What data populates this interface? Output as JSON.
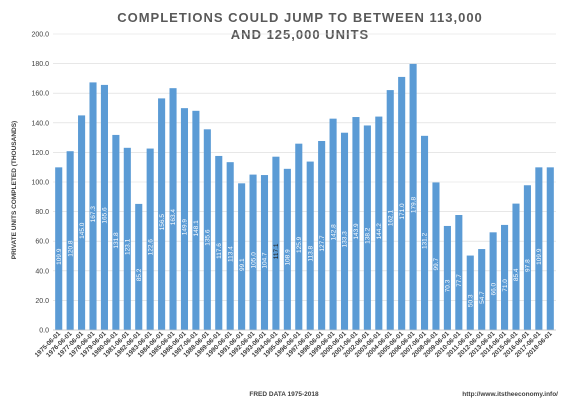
{
  "chart_data": {
    "type": "bar",
    "title_lines": [
      "COMPLETIONS COULD JUMP TO BETWEEN  113,000",
      "AND 125,000 UNITS"
    ],
    "ylabel": "PRIVATE UNITS COMPLETED (THOUSANDS)",
    "xlabel": "",
    "ylim": [
      0,
      200
    ],
    "yticks": [
      "0.0",
      "20.0",
      "40.0",
      "60.0",
      "80.0",
      "100.0",
      "120.0",
      "140.0",
      "160.0",
      "180.0",
      "200.0"
    ],
    "grid": true,
    "categories": [
      "1975-06-01",
      "1976-06-01",
      "1977-06-01",
      "1978-06-01",
      "1979-06-01",
      "1980-06-01",
      "1981-06-01",
      "1982-06-01",
      "1983-06-01",
      "1984-06-01",
      "1985-06-01",
      "1986-06-01",
      "1987-06-01",
      "1988-06-01",
      "1989-06-01",
      "1990-06-01",
      "1991-06-01",
      "1992-06-01",
      "1993-06-01",
      "1994-06-01",
      "1995-06-01",
      "1996-06-01",
      "1997-06-01",
      "1998-06-01",
      "1999-06-01",
      "2000-06-01",
      "2001-06-01",
      "2002-06-01",
      "2003-06-01",
      "2004-06-01",
      "2005-06-01",
      "2006-06-01",
      "2007-06-01",
      "2008-06-01",
      "2009-06-01",
      "2010-06-01",
      "2011-06-01",
      "2012-06-01",
      "2013-06-01",
      "2014-06-01",
      "2015-06-01",
      "2016-06-01",
      "2017-06-01",
      "2018-06-01"
    ],
    "values": [
      109.9,
      120.8,
      145.0,
      167.3,
      165.6,
      131.8,
      123.1,
      85.2,
      122.6,
      156.5,
      163.4,
      149.9,
      148.1,
      135.6,
      117.6,
      113.4,
      99.1,
      105.0,
      104.7,
      117.1,
      108.9,
      125.9,
      113.8,
      127.7,
      142.8,
      133.3,
      143.9,
      138.2,
      144.2,
      162.1,
      171.0,
      179.8,
      131.2,
      99.7,
      70.3,
      77.7,
      50.3,
      54.7,
      66.0,
      71.0,
      85.4,
      97.8,
      109.9,
      109.9
    ],
    "labels": [
      "109.9",
      "120.8",
      "145.0",
      "167.3",
      "165.6",
      "131.8",
      "123.1",
      "85.2",
      "122.6",
      "156.5",
      "163.4",
      "149.9",
      "148.1",
      "135.6",
      "117.6",
      "113.4",
      "99.1",
      "105.0",
      "104.7",
      "117.1",
      "108.9",
      "125.9",
      "113.8",
      "127.7",
      "142.8",
      "133.3",
      "143.9",
      "138.2",
      "144.2",
      "162.1",
      "171.0",
      "179.8",
      "131.2",
      "99.7",
      "70.3",
      "77.7",
      "50.3",
      "54.7",
      "66.0",
      "71.0",
      "85.4",
      "97.8",
      "109.9",
      ""
    ],
    "dark_label_index": 19,
    "colors": {
      "bar": "#5b9bd5",
      "grid": "#d9d9d9"
    }
  },
  "footer": {
    "source": "FRED DATA 1975-2018",
    "url": "http://www.itstheeconomy.info/"
  }
}
